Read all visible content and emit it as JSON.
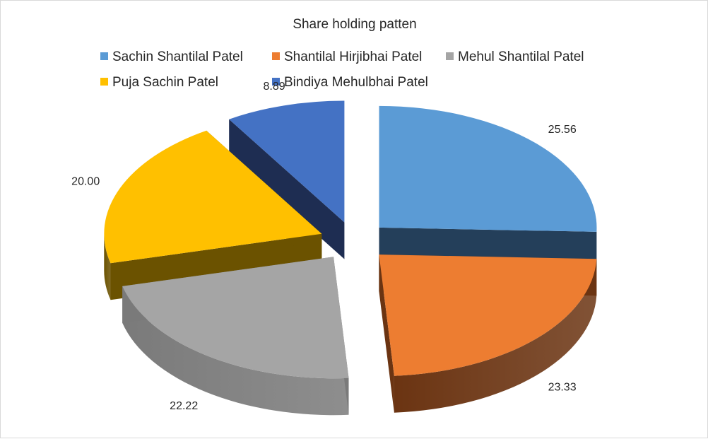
{
  "chart_data": {
    "type": "pie",
    "variant": "3d-exploded",
    "title": "Share holding patten",
    "legend_position": "top",
    "series": [
      {
        "name": "Sachin Shantilal Patel",
        "value": 25.56,
        "label": "25.56",
        "color": "#5B9BD5",
        "side_color": "#243F5A"
      },
      {
        "name": "Shantilal Hirjibhai Patel",
        "value": 23.33,
        "label": "23.33",
        "color": "#ED7D31",
        "side_color": "#6B3412"
      },
      {
        "name": "Mehul Shantilal Patel",
        "value": 22.22,
        "label": "22.22",
        "color": "#A5A5A5",
        "side_color": "#7A7A7A"
      },
      {
        "name": "Puja Sachin Patel",
        "value": 20.0,
        "label": "20.00",
        "color": "#FFC000",
        "side_color": "#6B5200"
      },
      {
        "name": "Bindiya Mehulbhai Patel",
        "value": 8.89,
        "label": "8.89",
        "color": "#4472C4",
        "side_color": "#1E2D52"
      }
    ]
  }
}
